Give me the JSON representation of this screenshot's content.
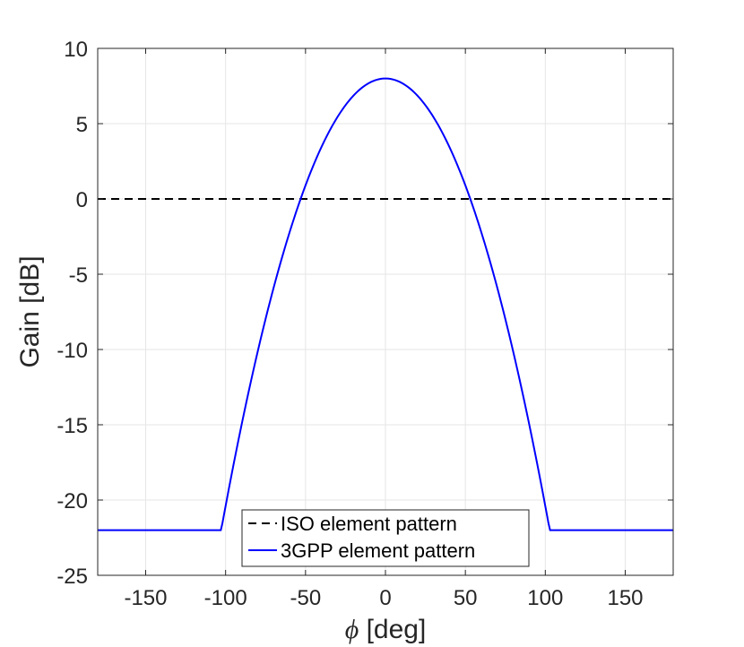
{
  "chart_data": {
    "type": "line",
    "xlabel_symbol": "ϕ",
    "xlabel_unit": " [deg]",
    "ylabel": "Gain [dB]",
    "xlim": [
      -180,
      180
    ],
    "ylim": [
      -25,
      10
    ],
    "xticks": [
      -150,
      -100,
      -50,
      0,
      50,
      100,
      150
    ],
    "xtick_labels": [
      "-150",
      "-100",
      "-50",
      "0",
      "50",
      "100",
      "150"
    ],
    "yticks": [
      -25,
      -20,
      -15,
      -10,
      -5,
      0,
      5,
      10
    ],
    "ytick_labels": [
      "-25",
      "-20",
      "-15",
      "-10",
      "-5",
      "0",
      "5",
      "10"
    ],
    "grid": true,
    "legend_position": "bottom-center",
    "series": [
      {
        "name": "ISO element pattern",
        "color": "#000000",
        "style": "dashed",
        "x": [
          -180,
          180
        ],
        "y": [
          0,
          0
        ]
      },
      {
        "name": "3GPP element pattern",
        "color": "#0000ff",
        "style": "solid",
        "x": [
          -180,
          -150,
          -120,
          -103,
          -100,
          -90,
          -80,
          -70,
          -60,
          -55,
          -50,
          -40,
          -30,
          -20,
          -10,
          0,
          10,
          20,
          30,
          40,
          50,
          55,
          60,
          70,
          80,
          90,
          100,
          103,
          120,
          150,
          180
        ],
        "y": [
          -22,
          -22,
          -22,
          -22,
          -20.5,
          -14.5,
          -9.5,
          -5.3,
          -1.9,
          -0.4,
          1.0,
          3.4,
          5.3,
          6.9,
          7.6,
          8,
          7.6,
          6.9,
          5.3,
          3.4,
          1.0,
          -0.4,
          -1.9,
          -5.3,
          -9.5,
          -14.5,
          -20.5,
          -22,
          -22,
          -22,
          -22
        ]
      }
    ]
  }
}
